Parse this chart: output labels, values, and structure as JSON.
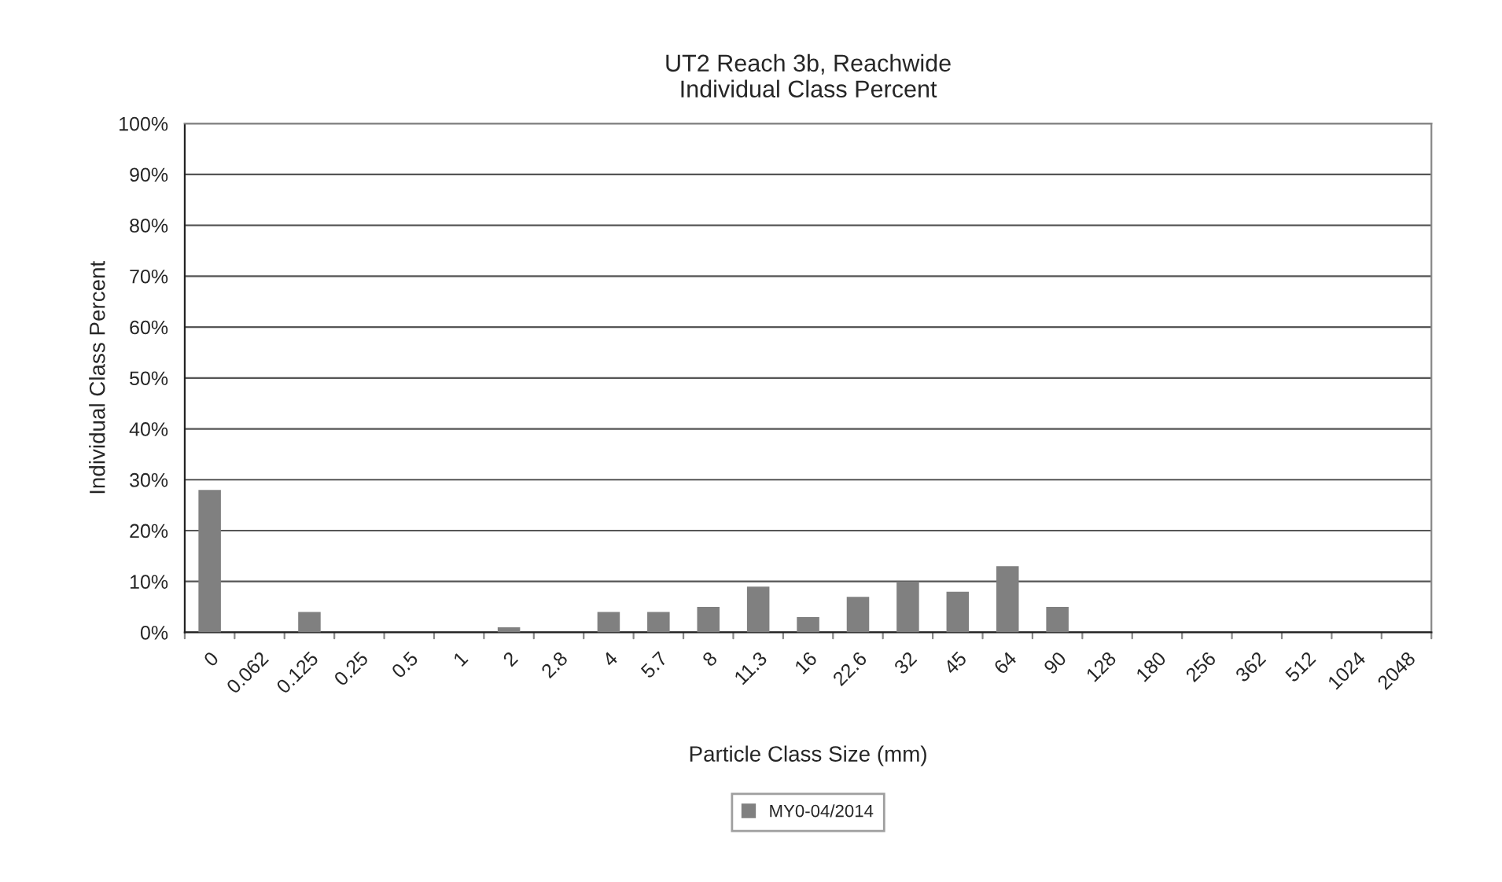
{
  "chart_data": {
    "type": "bar",
    "title": "UT2 Reach 3b, Reachwide\nIndividual Class Percent",
    "xlabel": "Particle Class Size (mm)",
    "ylabel": "Individual Class Percent",
    "categories": [
      "0",
      "0.062",
      "0.125",
      "0.25",
      "0.5",
      "1",
      "2",
      "2.8",
      "4",
      "5.7",
      "8",
      "11.3",
      "16",
      "22.6",
      "32",
      "45",
      "64",
      "90",
      "128",
      "180",
      "256",
      "362",
      "512",
      "1024",
      "2048"
    ],
    "series": [
      {
        "name": "MY0-04/2014",
        "color": "#808080",
        "values": [
          28,
          0,
          4,
          0,
          0,
          0,
          1,
          0,
          4,
          4,
          5,
          9,
          3,
          7,
          10,
          8,
          13,
          5,
          0,
          0,
          0,
          0,
          0,
          0,
          0
        ]
      }
    ],
    "ylim": [
      0,
      100
    ],
    "yticks": [
      {
        "value": 0,
        "label": "0%"
      },
      {
        "value": 10,
        "label": "10%"
      },
      {
        "value": 20,
        "label": "20%"
      },
      {
        "value": 30,
        "label": "30%"
      },
      {
        "value": 40,
        "label": "40%"
      },
      {
        "value": 50,
        "label": "50%"
      },
      {
        "value": 60,
        "label": "60%"
      },
      {
        "value": 70,
        "label": "70%"
      },
      {
        "value": 80,
        "label": "80%"
      },
      {
        "value": 90,
        "label": "90%"
      },
      {
        "value": 100,
        "label": "100%"
      }
    ],
    "grid": "y",
    "legend": "bottom"
  }
}
